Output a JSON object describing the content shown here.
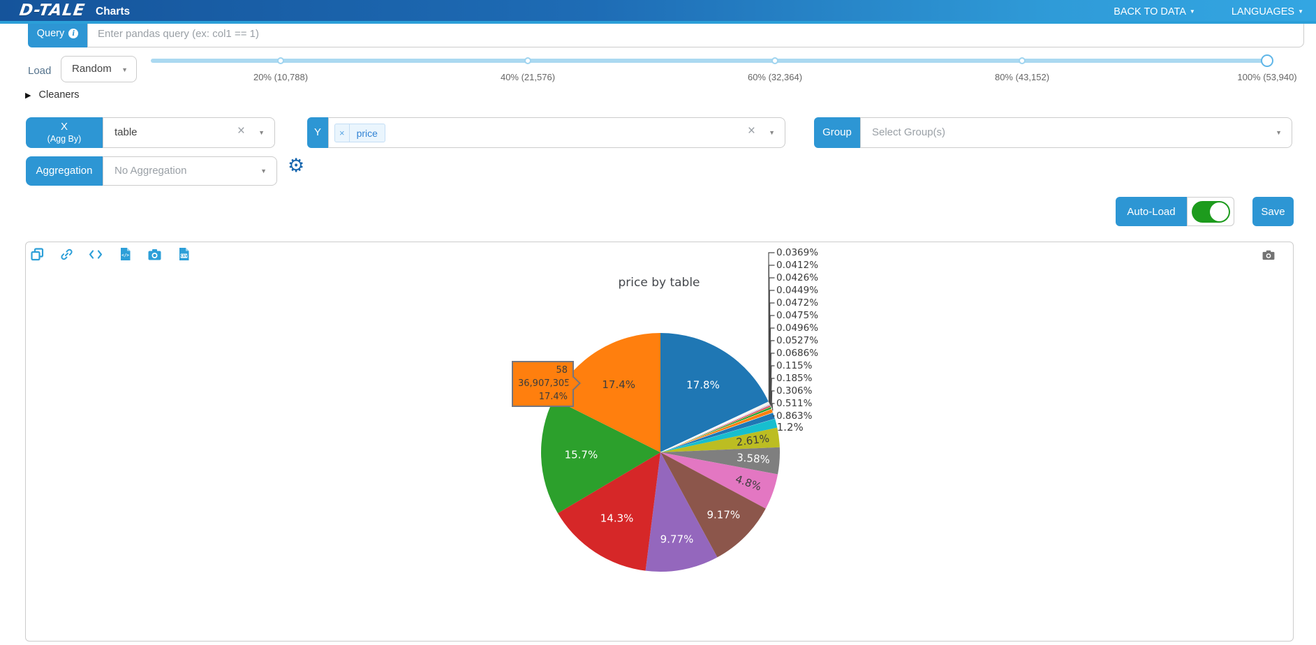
{
  "navbar": {
    "logo": "D-TALE",
    "title": "Charts",
    "back_to_data": "BACK TO DATA",
    "languages": "LANGUAGES",
    "caret_icon": "▼"
  },
  "query": {
    "label": "Query",
    "info_icon": "i",
    "placeholder": "Enter pandas query (ex: col1 == 1)",
    "value": ""
  },
  "load": {
    "label": "Load",
    "mode": "Random",
    "marks": [
      "20% (10,788)",
      "40% (21,576)",
      "60% (32,364)",
      "80% (43,152)",
      "100% (53,940)"
    ],
    "selected_mark": "100% (53,940)"
  },
  "cleaners": {
    "label": "Cleaners",
    "collapsed_icon": "▶"
  },
  "controls": {
    "x_label_line1": "X",
    "x_label_line2": "(Agg By)",
    "x_value": "table",
    "y_label": "Y",
    "y_values": [
      "price"
    ],
    "chip_remove_icon": "×",
    "clear_icon": "×",
    "caret_icon": "▼",
    "group_label": "Group",
    "group_placeholder": "Select Group(s)",
    "aggregation_label": "Aggregation",
    "aggregation_placeholder": "No Aggregation",
    "gear_icon": "⚙"
  },
  "actions": {
    "auto_load_label": "Auto-Load",
    "auto_load_on": true,
    "toggle_on_color": "#1d9b1d",
    "save_label": "Save"
  },
  "toolbar_icons": [
    "popup-chart-icon",
    "copy-link-icon",
    "code-export-icon",
    "file-code-icon",
    "chart-image-icon",
    "export-csv-icon"
  ],
  "modebar": {
    "camera_icon": "download-plot-as-png"
  },
  "chart_data": {
    "type": "pie",
    "title": "price by table",
    "legend_position": "none",
    "tooltip": {
      "lines": [
        "58",
        "36,907,305",
        "17.4%"
      ],
      "background": "#ff7f0e",
      "border": "#75757d"
    },
    "slices": [
      {
        "label": "17.8%",
        "value": 17.8,
        "color": "#1f77b4"
      },
      {
        "label": "0.0369%",
        "value": 0.0369,
        "color": "#d62728"
      },
      {
        "label": "0.0412%",
        "value": 0.0412,
        "color": "#2ca02c"
      },
      {
        "label": "0.0426%",
        "value": 0.0426,
        "color": "#ff7f0e"
      },
      {
        "label": "0.0449%",
        "value": 0.0449,
        "color": "#1f77b4"
      },
      {
        "label": "0.0472%",
        "value": 0.0472,
        "color": "#17becf"
      },
      {
        "label": "0.0475%",
        "value": 0.0475,
        "color": "#bcbd22"
      },
      {
        "label": "0.0496%",
        "value": 0.0496,
        "color": "#7f7f7f"
      },
      {
        "label": "0.0527%",
        "value": 0.0527,
        "color": "#e377c2"
      },
      {
        "label": "0.0686%",
        "value": 0.0686,
        "color": "#8c564b"
      },
      {
        "label": "0.115%",
        "value": 0.115,
        "color": "#9467bd"
      },
      {
        "label": "0.185%",
        "value": 0.185,
        "color": "#d62728"
      },
      {
        "label": "0.306%",
        "value": 0.306,
        "color": "#2ca02c"
      },
      {
        "label": "0.511%",
        "value": 0.511,
        "color": "#ff7f0e"
      },
      {
        "label": "0.863%",
        "value": 0.863,
        "color": "#1f77b4"
      },
      {
        "label": "1.2%",
        "value": 1.2,
        "color": "#17becf"
      },
      {
        "label": "2.61%",
        "value": 2.61,
        "color": "#bcbd22"
      },
      {
        "label": "3.58%",
        "value": 3.58,
        "color": "#7f7f7f"
      },
      {
        "label": "4.8%",
        "value": 4.8,
        "color": "#e377c2"
      },
      {
        "label": "9.17%",
        "value": 9.17,
        "color": "#8c564b"
      },
      {
        "label": "9.77%",
        "value": 9.77,
        "color": "#9467bd"
      },
      {
        "label": "14.3%",
        "value": 14.3,
        "color": "#d62728"
      },
      {
        "label": "15.7%",
        "value": 15.7,
        "color": "#2ca02c"
      },
      {
        "label": "17.4%",
        "value": 17.4,
        "color": "#ff7f0e"
      }
    ]
  },
  "colors": {
    "accent_blue": "#2d96d4",
    "navbar_left": "#15549b",
    "navbar_right": "#33a6e2",
    "slider_track": "#abd9f1",
    "toolbar_icon": "#2d9fd8",
    "modebar_gray": "#737373",
    "leader_line": "#4a4a4a"
  }
}
